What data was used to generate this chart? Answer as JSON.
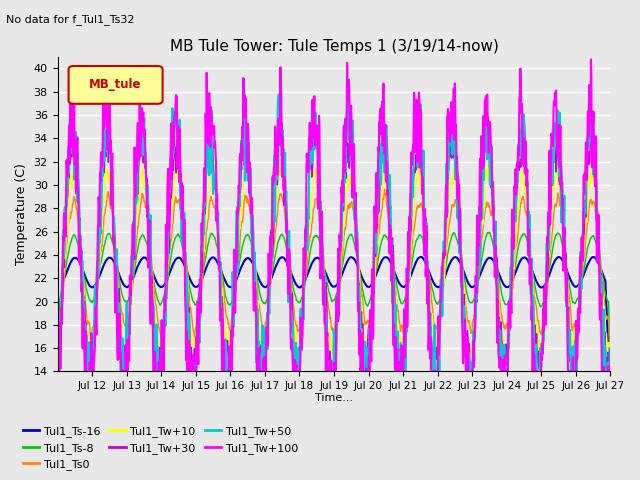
{
  "title": "MB Tule Tower: Tule Temps 1 (3/19/14-now)",
  "subtitle": "No data for f_Tul1_Ts32",
  "xlabel": "Time...",
  "ylabel": "Temperature (C)",
  "ylim": [
    14,
    41
  ],
  "yticks": [
    14,
    16,
    18,
    20,
    22,
    24,
    26,
    28,
    30,
    32,
    34,
    36,
    38,
    40
  ],
  "x_tick_labels": [
    "Jul 12",
    "Jul 13",
    "Jul 14",
    "Jul 15",
    "Jul 16",
    "Jul 17",
    "Jul 18",
    "Jul 19",
    "Jul 20",
    "Jul 21",
    "Jul 22",
    "Jul 23",
    "Jul 24",
    "Jul 25",
    "Jul 26",
    "Jul 27"
  ],
  "legend_box_label": "MB_tule",
  "legend_box_color": "#ffff99",
  "legend_box_border": "#cc0000",
  "series": [
    {
      "name": "Tul1_Ts-16",
      "color": "#0000cc",
      "lw": 1.5
    },
    {
      "name": "Tul1_Ts-8",
      "color": "#00cc00",
      "lw": 1.0
    },
    {
      "name": "Tul1_Ts0",
      "color": "#ff8800",
      "lw": 1.0
    },
    {
      "name": "Tul1_Tw+10",
      "color": "#ffff00",
      "lw": 1.0
    },
    {
      "name": "Tul1_Tw+30",
      "color": "#cc00cc",
      "lw": 1.0
    },
    {
      "name": "Tul1_Tw+50",
      "color": "#00cccc",
      "lw": 1.5
    },
    {
      "name": "Tul1_Tw+100",
      "color": "#ff00ff",
      "lw": 1.5
    }
  ],
  "bg_color": "#e8e8e8",
  "plot_bg_color": "#e8e8e8",
  "grid_color": "#ffffff"
}
